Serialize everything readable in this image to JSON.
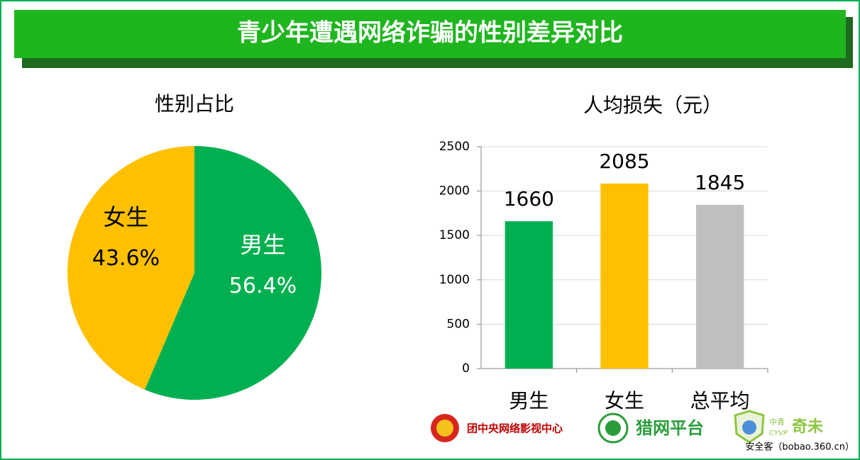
{
  "header": {
    "title": "青少年遭遇网络诈骗的性别差异对比"
  },
  "chart_data": [
    {
      "type": "pie",
      "title": "性别占比",
      "categories": [
        "男生",
        "女生"
      ],
      "values": [
        56.4,
        43.6
      ],
      "value_labels": [
        "56.4%",
        "43.6%"
      ],
      "colors": [
        "#00b050",
        "#ffc000"
      ]
    },
    {
      "type": "bar",
      "title": "人均损失（元）",
      "categories": [
        "男生",
        "女生",
        "总平均"
      ],
      "values": [
        1660,
        2085,
        1845
      ],
      "colors": [
        "#00b050",
        "#ffc000",
        "#bfbfbf"
      ],
      "ylim": [
        0,
        2500
      ],
      "yticks": [
        0,
        500,
        1000,
        1500,
        2000,
        2500
      ],
      "grid": true
    }
  ],
  "logos": [
    "团中央网络影视中心",
    "猎网平台",
    "中青",
    "CYVP",
    "奇未"
  ],
  "watermark": "安全客（bobao.360.cn）"
}
